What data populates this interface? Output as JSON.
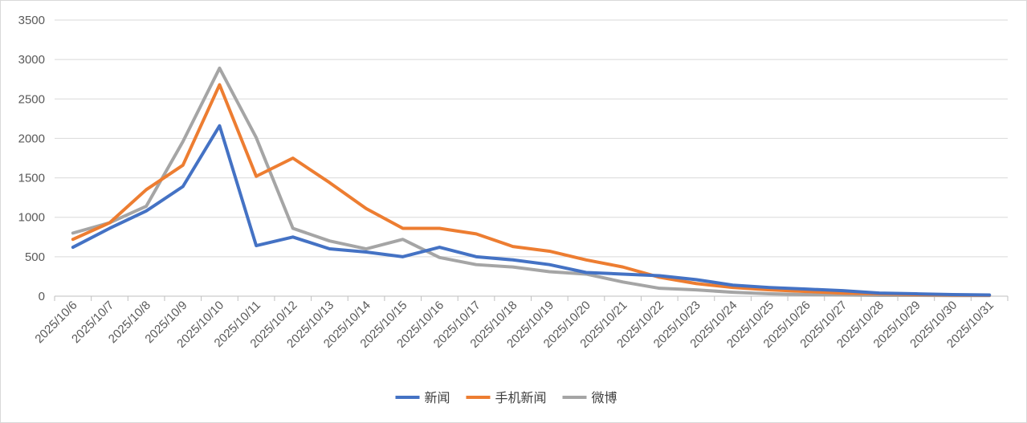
{
  "chart_data": {
    "type": "line",
    "title": "",
    "xlabel": "",
    "ylabel": "",
    "ylim": [
      0,
      3500
    ],
    "yticks": [
      0,
      500,
      1000,
      1500,
      2000,
      2500,
      3000,
      3500
    ],
    "grid": true,
    "legend_position": "bottom",
    "categories": [
      "2025/10/6",
      "2025/10/7",
      "2025/10/8",
      "2025/10/9",
      "2025/10/10",
      "2025/10/11",
      "2025/10/12",
      "2025/10/13",
      "2025/10/14",
      "2025/10/15",
      "2025/10/16",
      "2025/10/17",
      "2025/10/18",
      "2025/10/19",
      "2025/10/20",
      "2025/10/21",
      "2025/10/22",
      "2025/10/23",
      "2025/10/24",
      "2025/10/25",
      "2025/10/26",
      "2025/10/27",
      "2025/10/28",
      "2025/10/29",
      "2025/10/30",
      "2025/10/31"
    ],
    "series": [
      {
        "name": "新闻",
        "color": "#4472C4",
        "values": [
          620,
          860,
          1080,
          1390,
          2160,
          640,
          750,
          600,
          560,
          500,
          620,
          500,
          460,
          400,
          300,
          280,
          260,
          210,
          140,
          110,
          90,
          70,
          40,
          30,
          20,
          15
        ]
      },
      {
        "name": "手机新闻",
        "color": "#ED7D31",
        "values": [
          720,
          930,
          1350,
          1660,
          2680,
          1520,
          1750,
          1440,
          1110,
          860,
          860,
          790,
          630,
          570,
          460,
          370,
          240,
          160,
          110,
          80,
          60,
          40,
          30,
          20,
          15,
          12
        ]
      },
      {
        "name": "微博",
        "color": "#A5A5A5",
        "values": [
          800,
          930,
          1140,
          1960,
          2890,
          2010,
          860,
          700,
          600,
          720,
          490,
          400,
          370,
          310,
          280,
          180,
          100,
          80,
          50,
          30,
          20,
          15,
          10,
          10,
          8,
          8
        ]
      }
    ]
  }
}
